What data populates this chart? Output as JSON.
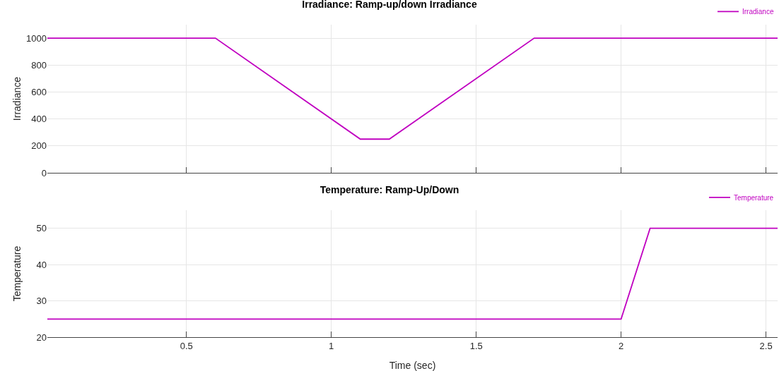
{
  "chart_data": [
    {
      "type": "line",
      "title": "Irradiance: Ramp-up/down Irradiance",
      "ylabel": "Irradiance",
      "x": [
        0.02,
        0.6,
        1.1,
        1.2,
        1.7,
        2.54
      ],
      "series": [
        {
          "name": "Irradiance",
          "color": "#c000c0",
          "values": [
            1000,
            1000,
            250,
            250,
            1000,
            1000
          ]
        }
      ],
      "xlim": [
        0.02,
        2.54
      ],
      "xticks": [
        {
          "value": 0.5,
          "label": null
        },
        {
          "value": 1,
          "label": null
        },
        {
          "value": 1.5,
          "label": null
        },
        {
          "value": 2,
          "label": null
        },
        {
          "value": 2.5,
          "label": null
        }
      ],
      "ylim": [
        0,
        1100
      ],
      "yticks": [
        0,
        200,
        400,
        600,
        800,
        1000
      ],
      "tick_labels": "y",
      "grid": true,
      "legend": "top right",
      "line_style": "solid",
      "marker": "none"
    },
    {
      "type": "line",
      "title": "Temperature: Ramp-Up/Down",
      "ylabel": "Temperature",
      "xlabel": "Time (sec)",
      "x": [
        0.02,
        2.0,
        2.1,
        2.54
      ],
      "series": [
        {
          "name": "Temperature",
          "color": "#c000c0",
          "values": [
            25,
            25,
            50,
            50
          ]
        }
      ],
      "xlim": [
        0.02,
        2.54
      ],
      "xticks": [
        0.5,
        1,
        1.5,
        2,
        2.5
      ],
      "ylim": [
        20,
        55
      ],
      "yticks": [
        20,
        30,
        40,
        50
      ],
      "grid": true,
      "legend": "top right",
      "line_style": "solid",
      "marker": "none"
    }
  ]
}
